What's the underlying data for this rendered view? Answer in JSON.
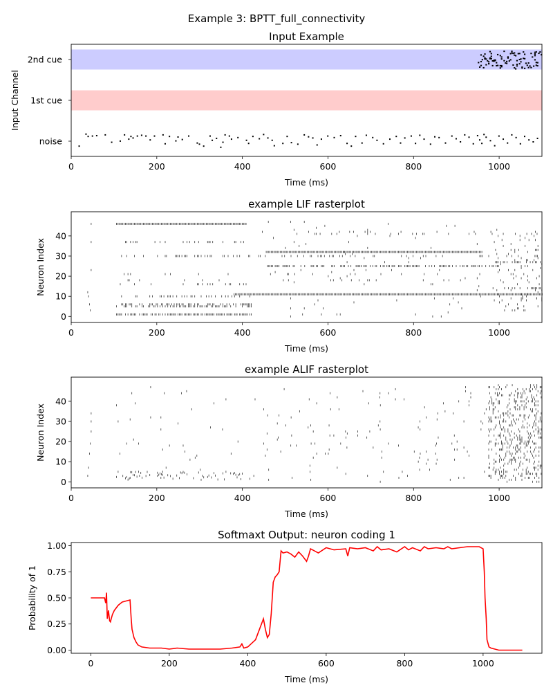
{
  "figure": {
    "suptitle": "Example 3: BPTT_full_connectivity"
  },
  "colors": {
    "cue2_band": "#ccccff",
    "cue1_band": "#ffcccc",
    "spike": "#000000",
    "softmax_line": "#ff0000"
  },
  "chart_data": [
    {
      "id": "input",
      "type": "scatter",
      "title": "Input Example",
      "xlabel": "Time (ms)",
      "ylabel": "Input Channel",
      "xlim": [
        0,
        1100
      ],
      "xticks": [
        0,
        200,
        400,
        600,
        800,
        1000
      ],
      "channels": [
        "noise",
        "1st cue",
        "2nd cue"
      ],
      "bands": [
        {
          "channel": "2nd cue",
          "x": [
            0,
            1100
          ],
          "color": "#ccccff"
        },
        {
          "channel": "1st cue",
          "x": [
            0,
            1100
          ],
          "color": "#ffcccc"
        }
      ],
      "noise_spikes": [
        [
          17,
          0.72
        ],
        [
          33,
          0.1
        ],
        [
          38,
          0.22
        ],
        [
          48,
          0.2
        ],
        [
          58,
          0.18
        ],
        [
          78,
          0.14
        ],
        [
          93,
          0.52
        ],
        [
          113,
          0.46
        ],
        [
          123,
          0.14
        ],
        [
          133,
          0.36
        ],
        [
          138,
          0.22
        ],
        [
          143,
          0.3
        ],
        [
          153,
          0.2
        ],
        [
          163,
          0.16
        ],
        [
          173,
          0.2
        ],
        [
          183,
          0.4
        ],
        [
          193,
          0.2
        ],
        [
          213,
          0.14
        ],
        [
          218,
          0.6
        ],
        [
          228,
          0.22
        ],
        [
          243,
          0.45
        ],
        [
          248,
          0.25
        ],
        [
          258,
          0.38
        ],
        [
          273,
          0.2
        ],
        [
          293,
          0.56
        ],
        [
          298,
          0.62
        ],
        [
          308,
          0.72
        ],
        [
          323,
          0.2
        ],
        [
          328,
          0.42
        ],
        [
          338,
          0.32
        ],
        [
          348,
          0.78
        ],
        [
          353,
          0.52
        ],
        [
          358,
          0.14
        ],
        [
          368,
          0.2
        ],
        [
          373,
          0.36
        ],
        [
          388,
          0.28
        ],
        [
          408,
          0.42
        ],
        [
          413,
          0.58
        ],
        [
          423,
          0.22
        ],
        [
          438,
          0.34
        ],
        [
          448,
          0.12
        ],
        [
          458,
          0.3
        ],
        [
          468,
          0.42
        ],
        [
          473,
          0.7
        ],
        [
          493,
          0.58
        ],
        [
          503,
          0.22
        ],
        [
          513,
          0.54
        ],
        [
          528,
          0.62
        ],
        [
          543,
          0.14
        ],
        [
          553,
          0.24
        ],
        [
          563,
          0.3
        ],
        [
          573,
          0.66
        ],
        [
          583,
          0.36
        ],
        [
          598,
          0.2
        ],
        [
          613,
          0.28
        ],
        [
          628,
          0.18
        ],
        [
          643,
          0.58
        ],
        [
          653,
          0.72
        ],
        [
          663,
          0.22
        ],
        [
          678,
          0.56
        ],
        [
          688,
          0.16
        ],
        [
          703,
          0.28
        ],
        [
          713,
          0.42
        ],
        [
          728,
          0.6
        ],
        [
          743,
          0.36
        ],
        [
          758,
          0.22
        ],
        [
          768,
          0.56
        ],
        [
          778,
          0.3
        ],
        [
          793,
          0.2
        ],
        [
          803,
          0.58
        ],
        [
          813,
          0.16
        ],
        [
          823,
          0.36
        ],
        [
          838,
          0.62
        ],
        [
          848,
          0.24
        ],
        [
          858,
          0.28
        ],
        [
          873,
          0.56
        ],
        [
          888,
          0.2
        ],
        [
          898,
          0.34
        ],
        [
          908,
          0.5
        ],
        [
          918,
          0.14
        ],
        [
          928,
          0.26
        ],
        [
          938,
          0.6
        ],
        [
          948,
          0.18
        ],
        [
          953,
          0.4
        ],
        [
          958,
          0.58
        ],
        [
          963,
          0.12
        ],
        [
          968,
          0.26
        ],
        [
          978,
          0.44
        ],
        [
          988,
          0.7
        ],
        [
          998,
          0.2
        ],
        [
          1008,
          0.36
        ],
        [
          1018,
          0.56
        ],
        [
          1028,
          0.14
        ],
        [
          1038,
          0.28
        ],
        [
          1048,
          0.6
        ],
        [
          1058,
          0.22
        ],
        [
          1068,
          0.4
        ],
        [
          1078,
          0.5
        ],
        [
          1088,
          0.32
        ]
      ],
      "cue2_spike_window": [
        950,
        1100
      ]
    },
    {
      "id": "lif",
      "type": "scatter",
      "title": "example LIF rasterplot",
      "xlabel": "Time (ms)",
      "ylabel": "Neuron Index",
      "xlim": [
        0,
        1100
      ],
      "ylim": [
        -3,
        52
      ],
      "xticks": [
        0,
        200,
        400,
        600,
        800,
        1000
      ],
      "yticks": [
        0,
        10,
        20,
        30,
        40
      ],
      "neurons": [
        {
          "index": 46,
          "rate": 1.0,
          "segments": [
            [
              105,
              410
            ]
          ]
        },
        {
          "index": 42,
          "rate": 0.06,
          "segments": [
            [
              395,
              1100
            ]
          ]
        },
        {
          "index": 41,
          "rate": 0.05,
          "segments": [
            [
              380,
              1100
            ]
          ]
        },
        {
          "index": 37,
          "rate": 0.25,
          "segments": [
            [
              105,
              410
            ]
          ]
        },
        {
          "index": 33,
          "rate": 0.3,
          "segments": [
            [
              985,
              1100
            ]
          ]
        },
        {
          "index": 32,
          "rate": 1.0,
          "segments": [
            [
              455,
              960
            ]
          ]
        },
        {
          "index": 30,
          "rate": 0.2,
          "segments": [
            [
              105,
              1100
            ]
          ]
        },
        {
          "index": 27,
          "rate": 0.35,
          "segments": [
            [
              985,
              1100
            ]
          ]
        },
        {
          "index": 25,
          "rate": 0.6,
          "segments": [
            [
              455,
              1000
            ]
          ]
        },
        {
          "index": 21,
          "rate": 0.06,
          "segments": [
            [
              105,
              1100
            ]
          ]
        },
        {
          "index": 18,
          "rate": 0.05,
          "segments": [
            [
              105,
              1100
            ]
          ]
        },
        {
          "index": 16,
          "rate": 0.2,
          "segments": [
            [
              105,
              420
            ]
          ]
        },
        {
          "index": 14,
          "rate": 0.4,
          "segments": [
            [
              985,
              1100
            ]
          ]
        },
        {
          "index": 11,
          "rate": 1.0,
          "segments": [
            [
              380,
              1100
            ]
          ]
        },
        {
          "index": 10,
          "rate": 0.3,
          "segments": [
            [
              105,
              420
            ]
          ]
        },
        {
          "index": 6,
          "rate": 0.5,
          "segments": [
            [
              105,
              420
            ]
          ]
        },
        {
          "index": 5,
          "rate": 0.5,
          "segments": [
            [
              105,
              420
            ]
          ]
        },
        {
          "index": 1,
          "rate": 0.8,
          "segments": [
            [
              105,
              420
            ]
          ]
        },
        {
          "index": 9,
          "rate": 0.15,
          "segments": [
            [
              985,
              1100
            ]
          ]
        }
      ]
    },
    {
      "id": "alif",
      "type": "scatter",
      "title": "example ALIF rasterplot",
      "xlabel": "Time (ms)",
      "ylabel": "Neuron Index",
      "xlim": [
        0,
        1100
      ],
      "ylim": [
        -3,
        52
      ],
      "xticks": [
        0,
        200,
        400,
        600,
        800,
        1000
      ],
      "yticks": [
        0,
        10,
        20,
        30,
        40
      ],
      "burst_window": [
        975,
        1100
      ]
    },
    {
      "id": "softmax",
      "type": "line",
      "title": "Softmaxt Output: neuron coding 1",
      "xlabel": "Time (ms)",
      "ylabel": "Probability of 1",
      "xlim": [
        -50,
        1150
      ],
      "ylim": [
        -0.03,
        1.03
      ],
      "xticks": [
        0,
        200,
        400,
        600,
        800,
        1000
      ],
      "yticks": [
        0.0,
        0.25,
        0.5,
        0.75,
        1.0
      ],
      "ytick_labels": [
        "0.00",
        "0.25",
        "0.50",
        "0.75",
        "1.00"
      ],
      "x": [
        0,
        30,
        35,
        38,
        40,
        42,
        45,
        48,
        50,
        52,
        55,
        60,
        70,
        80,
        90,
        100,
        103,
        105,
        110,
        115,
        120,
        130,
        150,
        180,
        200,
        220,
        250,
        280,
        300,
        330,
        360,
        380,
        385,
        390,
        400,
        420,
        430,
        440,
        445,
        450,
        455,
        460,
        465,
        470,
        475,
        480,
        485,
        490,
        500,
        510,
        520,
        530,
        540,
        550,
        555,
        560,
        570,
        580,
        600,
        620,
        650,
        655,
        660,
        680,
        700,
        720,
        730,
        740,
        760,
        780,
        800,
        810,
        820,
        840,
        850,
        860,
        880,
        900,
        910,
        920,
        940,
        960,
        980,
        990,
        1000,
        1003,
        1005,
        1008,
        1010,
        1015,
        1020,
        1040,
        1100
      ],
      "y": [
        0.5,
        0.5,
        0.5,
        0.45,
        0.55,
        0.3,
        0.38,
        0.28,
        0.27,
        0.3,
        0.34,
        0.38,
        0.43,
        0.46,
        0.47,
        0.48,
        0.3,
        0.2,
        0.12,
        0.08,
        0.05,
        0.03,
        0.02,
        0.02,
        0.01,
        0.02,
        0.01,
        0.01,
        0.01,
        0.01,
        0.02,
        0.03,
        0.06,
        0.02,
        0.03,
        0.1,
        0.2,
        0.3,
        0.2,
        0.12,
        0.15,
        0.35,
        0.65,
        0.7,
        0.72,
        0.75,
        0.95,
        0.93,
        0.94,
        0.92,
        0.89,
        0.94,
        0.9,
        0.85,
        0.9,
        0.97,
        0.95,
        0.93,
        0.98,
        0.96,
        0.97,
        0.9,
        0.98,
        0.97,
        0.98,
        0.95,
        0.99,
        0.96,
        0.97,
        0.94,
        0.99,
        0.96,
        0.98,
        0.95,
        0.99,
        0.97,
        0.98,
        0.97,
        0.99,
        0.97,
        0.98,
        0.99,
        0.99,
        0.99,
        0.97,
        0.75,
        0.5,
        0.3,
        0.1,
        0.03,
        0.02,
        0.0,
        0.0
      ]
    }
  ]
}
